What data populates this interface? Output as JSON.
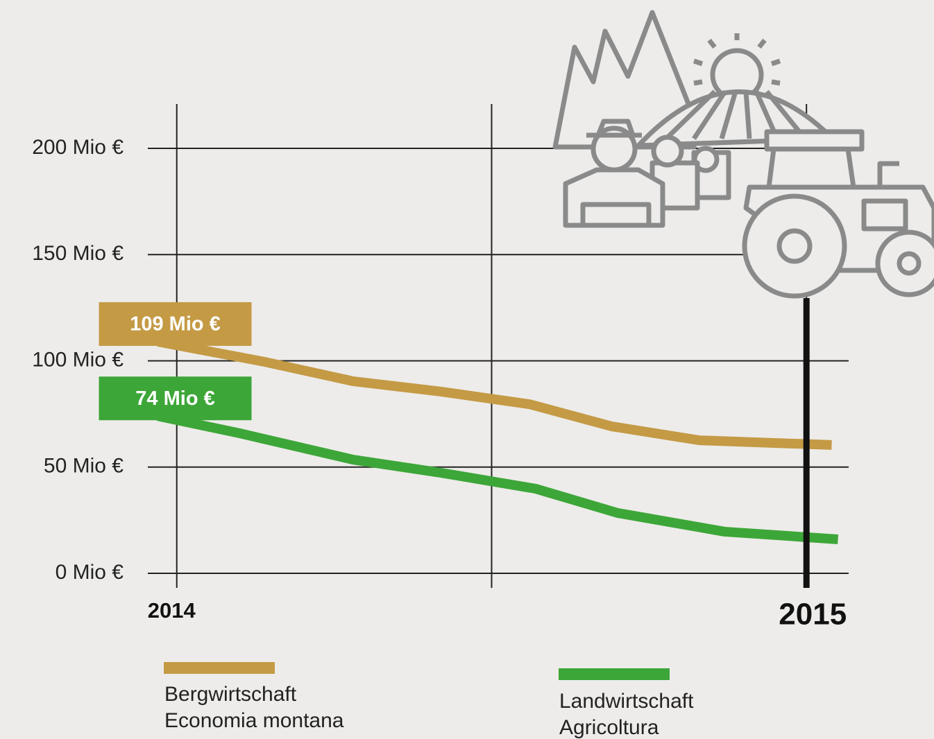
{
  "chart_data": {
    "type": "line",
    "xlim": [
      2013.954,
      2015.067
    ],
    "xticks": [
      2014,
      2015
    ],
    "xgrid": [
      2014,
      2014.5,
      2015
    ],
    "ylim": [
      0,
      200
    ],
    "yticks": [
      {
        "value": 0,
        "label": "0 Mio €"
      },
      {
        "value": 50,
        "label": "50 Mio €"
      },
      {
        "value": 100,
        "label": "100 Mio €"
      },
      {
        "value": 150,
        "label": "150 Mio €"
      },
      {
        "value": 200,
        "label": "200 Mio €"
      }
    ],
    "grid": true,
    "series": [
      {
        "name": "Bergwirtschaft\nEconomia montana",
        "color": "#c49a45",
        "x": [
          2013.97,
          2014.14,
          2014.28,
          2014.42,
          2014.56,
          2014.69,
          2014.83,
          2015.04
        ],
        "values": [
          109,
          99.5,
          90.4,
          85.5,
          79.6,
          69.2,
          62.6,
          60.4
        ],
        "value_labels": [
          "109 Mio €",
          null,
          null,
          null,
          null,
          null,
          null,
          null
        ]
      },
      {
        "name": "Landwirtschaft\nAgricoltura",
        "color": "#3da638",
        "x": [
          2013.97,
          2014.1,
          2014.28,
          2014.42,
          2014.57,
          2014.7,
          2014.87,
          2015.05
        ],
        "values": [
          74,
          65.9,
          53.5,
          47.3,
          39.8,
          28.4,
          19.6,
          16.0
        ],
        "value_labels": [
          "74 Mio €",
          null,
          null,
          null,
          null,
          null,
          null,
          null
        ]
      }
    ]
  }
}
